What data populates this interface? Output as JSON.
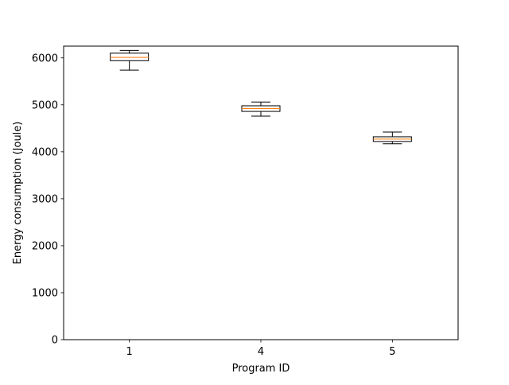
{
  "chart_data": {
    "type": "box",
    "xlabel": "Program ID",
    "ylabel": "Energy consumption (Joule)",
    "categories": [
      "1",
      "4",
      "5"
    ],
    "ylim": [
      0,
      6250
    ],
    "yticks": [
      0,
      1000,
      2000,
      3000,
      4000,
      5000,
      6000
    ],
    "ytick_labels": [
      "0",
      "1000",
      "2000",
      "3000",
      "4000",
      "5000",
      "6000"
    ],
    "boxes": [
      {
        "category": "1",
        "whisker_low": 5740,
        "q1": 5940,
        "median": 6010,
        "q3": 6100,
        "whisker_high": 6160
      },
      {
        "category": "4",
        "whisker_low": 4760,
        "q1": 4860,
        "median": 4920,
        "q3": 4980,
        "whisker_high": 5060
      },
      {
        "category": "5",
        "whisker_low": 4170,
        "q1": 4220,
        "median": 4270,
        "q3": 4320,
        "whisker_high": 4420
      }
    ],
    "grid": false,
    "colors": {
      "box": "#000000",
      "median": "#ff7f0e"
    }
  }
}
